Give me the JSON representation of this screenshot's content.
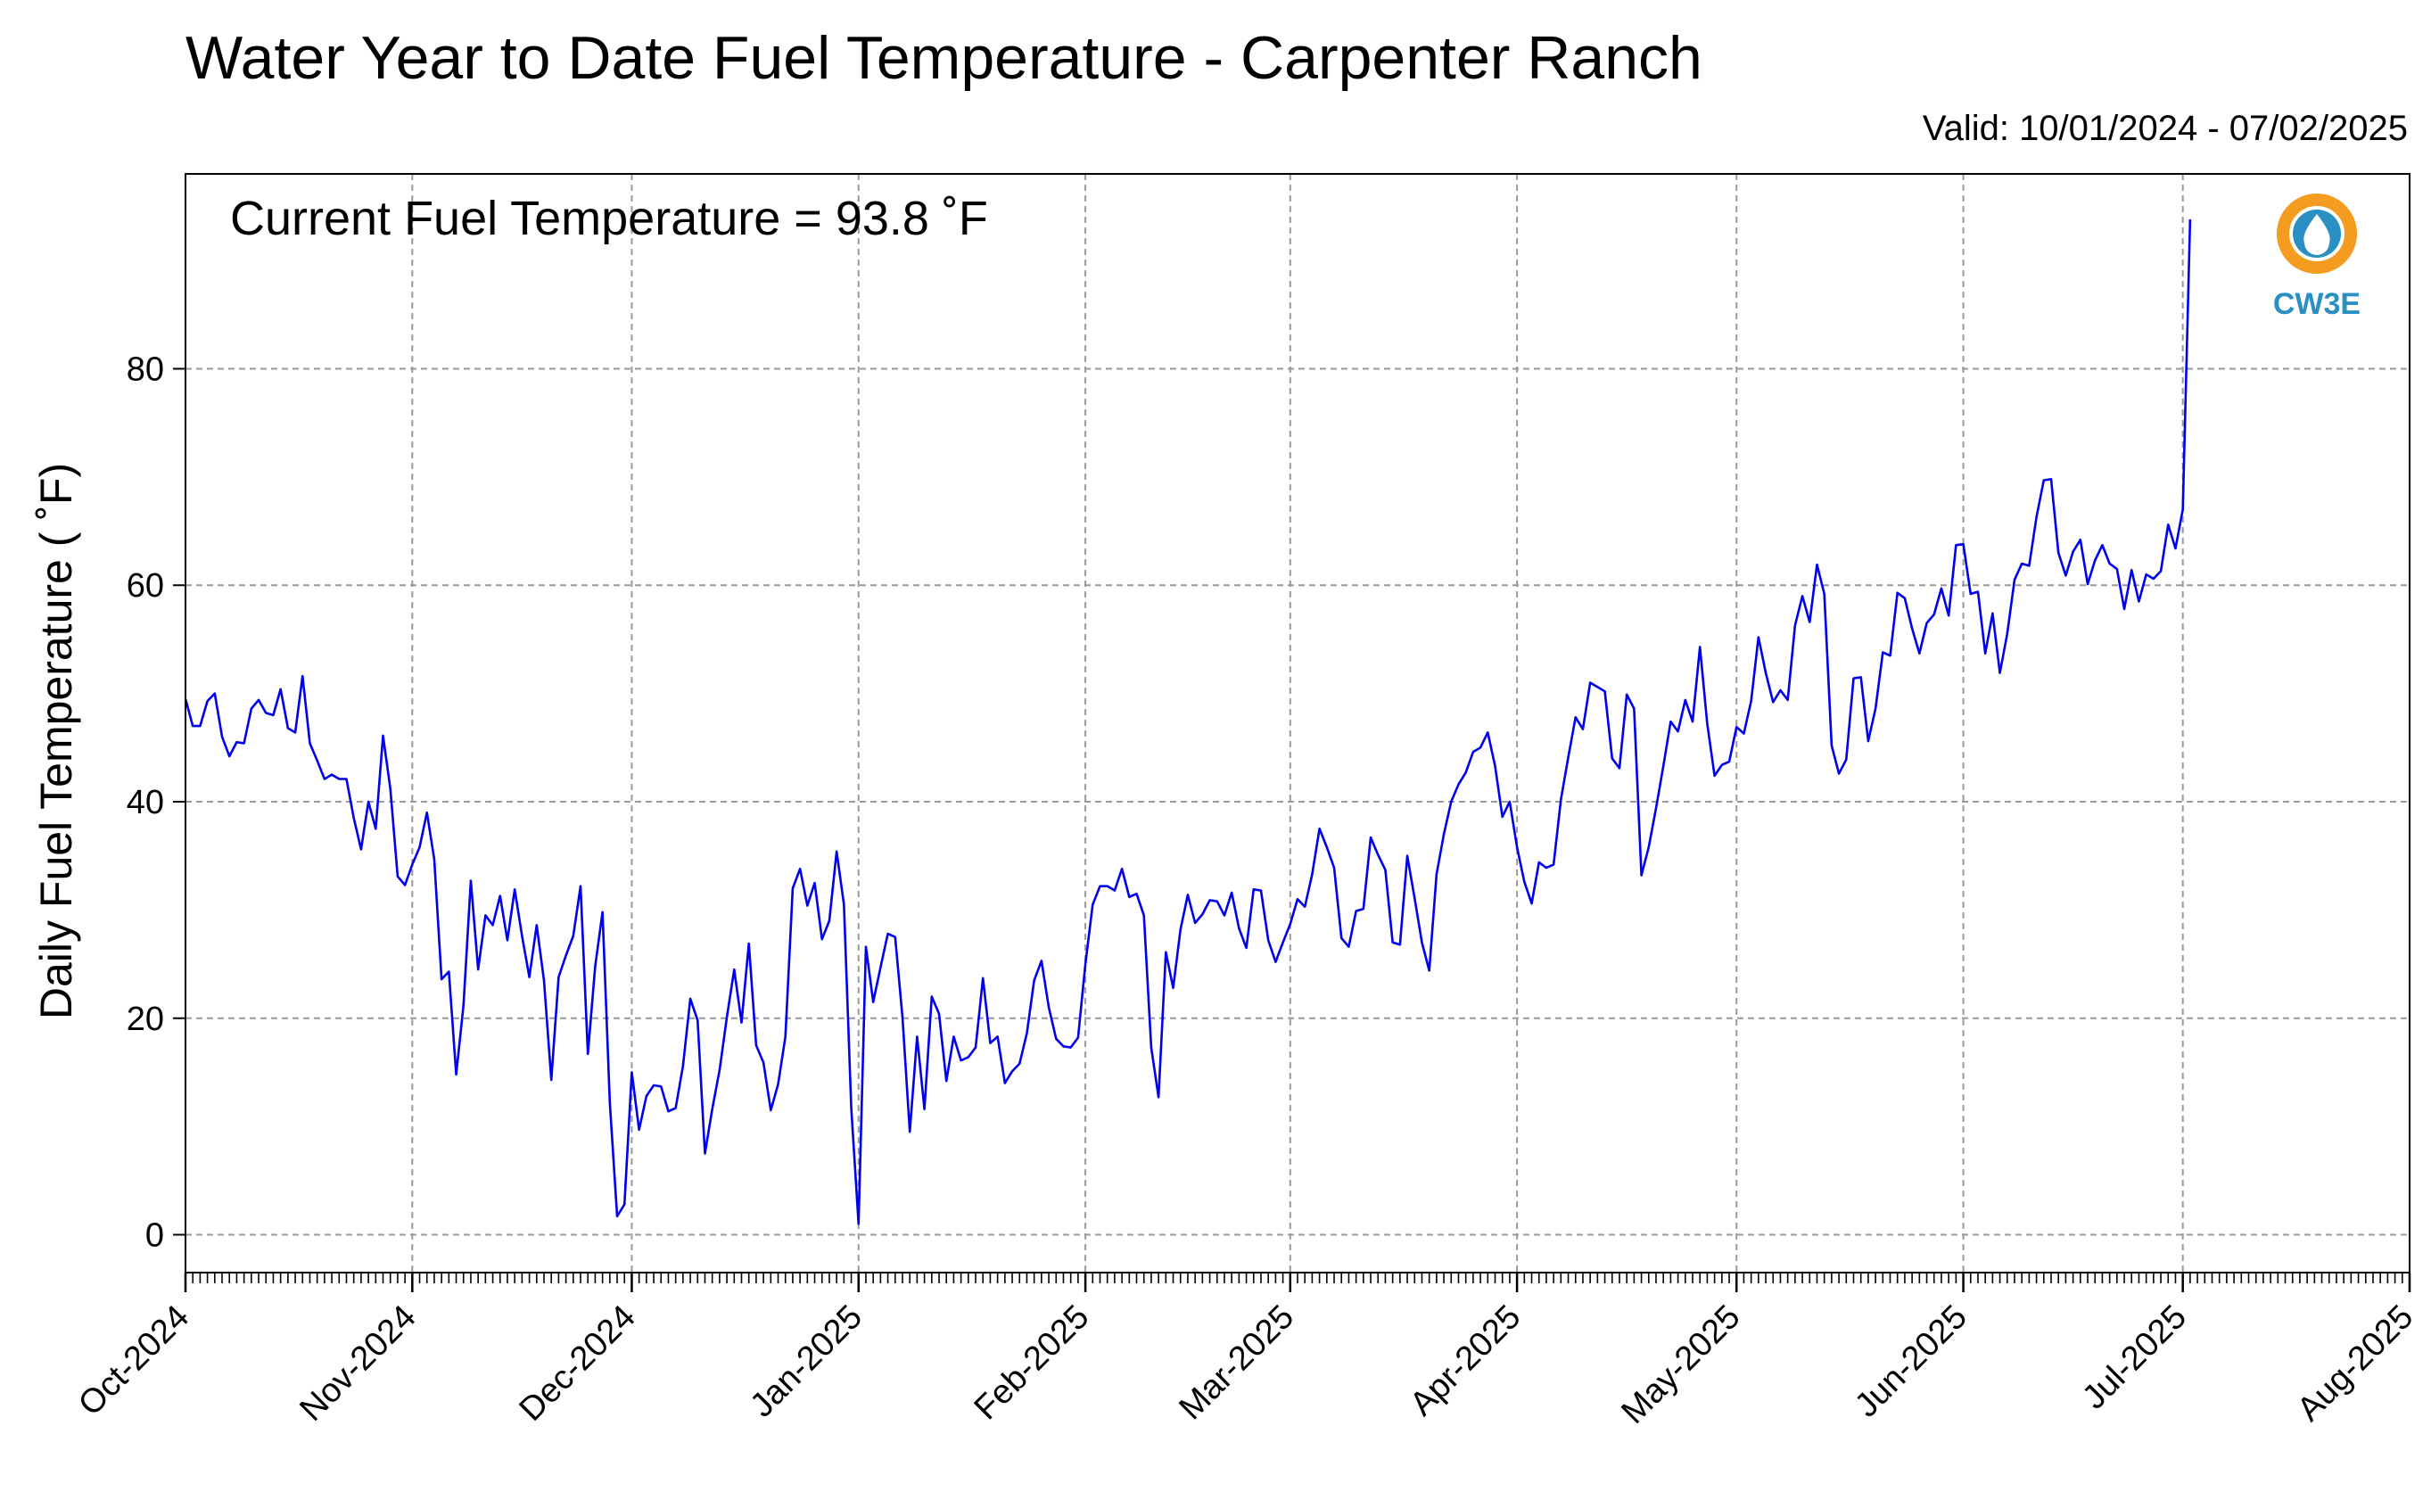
{
  "title": "Water Year to Date Fuel Temperature - Carpenter Ranch",
  "valid_label": "Valid: 10/01/2024 - 07/02/2025",
  "logo": {
    "text": "CW3E",
    "ring_color": "#f39c1f",
    "wave_color": "#2a8fc2",
    "text_color": "#2a8fc2"
  },
  "chart_data": {
    "type": "line",
    "ylabel": "Daily Fuel Temperature ( ˚F)",
    "annotation": "Current Fuel Temperature = 93.8  ˚F",
    "ylim": [
      -3.5,
      98
    ],
    "xlim": [
      "2024-10-01",
      "2025-08-01"
    ],
    "y_ticks": [
      0,
      20,
      40,
      60,
      80
    ],
    "x_ticks": [
      {
        "date": "2024-10-01",
        "label": "Oct-2024"
      },
      {
        "date": "2024-11-01",
        "label": "Nov-2024"
      },
      {
        "date": "2024-12-01",
        "label": "Dec-2024"
      },
      {
        "date": "2025-01-01",
        "label": "Jan-2025"
      },
      {
        "date": "2025-02-01",
        "label": "Feb-2025"
      },
      {
        "date": "2025-03-01",
        "label": "Mar-2025"
      },
      {
        "date": "2025-04-01",
        "label": "Apr-2025"
      },
      {
        "date": "2025-05-01",
        "label": "May-2025"
      },
      {
        "date": "2025-06-01",
        "label": "Jun-2025"
      },
      {
        "date": "2025-07-01",
        "label": "Jul-2025"
      },
      {
        "date": "2025-08-01",
        "label": "Aug-2025"
      }
    ],
    "grid": true,
    "line_color": "#0000ee",
    "series": [
      {
        "start_date": "2024-10-01",
        "values": [
          49.5,
          47.0,
          47.0,
          49.3,
          50.0,
          46.0,
          44.2,
          45.5,
          45.4,
          48.6,
          49.4,
          48.2,
          48.0,
          50.4,
          46.8,
          46.4,
          51.6,
          45.4,
          43.8,
          42.1,
          42.5,
          42.1,
          42.1,
          38.5,
          35.6,
          40.0,
          37.5,
          46.1,
          41.2,
          33.1,
          32.3,
          34.2,
          35.8,
          39.0,
          34.7,
          23.6,
          24.3,
          14.8,
          21.2,
          32.7,
          24.5,
          29.5,
          28.6,
          31.3,
          27.2,
          31.9,
          27.6,
          23.8,
          28.6,
          23.5,
          14.3,
          23.8,
          25.8,
          27.6,
          32.2,
          16.7,
          24.8,
          29.8,
          12.2,
          1.7,
          2.8,
          15.0,
          9.7,
          12.8,
          13.8,
          13.7,
          11.4,
          11.7,
          15.6,
          21.8,
          19.8,
          7.5,
          11.6,
          15.2,
          20.1,
          24.5,
          19.6,
          26.9,
          17.5,
          15.9,
          11.5,
          13.9,
          18.3,
          32.0,
          33.8,
          30.4,
          32.5,
          27.3,
          29.0,
          35.4,
          30.5,
          11.7,
          1.0,
          26.6,
          21.5,
          24.7,
          27.8,
          27.5,
          20.1,
          9.5,
          18.3,
          11.6,
          22.0,
          20.4,
          14.2,
          18.3,
          16.1,
          16.4,
          17.3,
          23.7,
          17.7,
          18.3,
          14.0,
          15.1,
          15.8,
          18.6,
          23.5,
          25.3,
          21.0,
          18.1,
          17.4,
          17.3,
          18.2,
          25.0,
          30.5,
          32.2,
          32.2,
          31.8,
          33.8,
          31.2,
          31.5,
          29.5,
          17.3,
          12.7,
          26.1,
          22.8,
          28.2,
          31.4,
          28.8,
          29.6,
          30.9,
          30.8,
          29.5,
          31.6,
          28.3,
          26.5,
          31.9,
          31.8,
          27.2,
          25.2,
          27.0,
          28.7,
          31.0,
          30.3,
          33.3,
          37.5,
          35.8,
          33.9,
          27.4,
          26.6,
          29.9,
          30.1,
          36.7,
          35.1,
          33.7,
          27.0,
          26.8,
          35.0,
          31.1,
          27.0,
          24.4,
          33.3,
          37.0,
          40.0,
          41.6,
          42.7,
          44.6,
          45.0,
          46.4,
          43.3,
          38.6,
          40.0,
          35.8,
          32.6,
          30.6,
          34.4,
          33.9,
          34.2,
          40.2,
          44.1,
          47.8,
          46.7,
          51.0,
          50.6,
          50.2,
          44.0,
          43.1,
          49.9,
          48.6,
          33.2,
          35.8,
          39.4,
          43.3,
          47.4,
          46.5,
          49.4,
          47.4,
          54.3,
          47.2,
          42.4,
          43.4,
          43.7,
          46.9,
          46.3,
          49.3,
          55.2,
          51.9,
          49.2,
          50.3,
          49.4,
          56.3,
          59.0,
          56.6,
          61.9,
          59.2,
          45.2,
          42.6,
          43.9,
          51.4,
          51.5,
          45.6,
          48.6,
          53.8,
          53.5,
          59.3,
          58.8,
          56.0,
          53.7,
          56.5,
          57.3,
          59.7,
          57.2,
          63.7,
          63.8,
          59.2,
          59.4,
          53.7,
          57.4,
          51.9,
          55.5,
          60.5,
          62.0,
          61.8,
          66.3,
          69.7,
          69.8,
          63.0,
          60.9,
          63.1,
          64.2,
          60.1,
          62.3,
          63.7,
          62.0,
          61.5,
          57.8,
          61.4,
          58.5,
          61.0,
          60.6,
          61.3,
          65.6,
          63.4,
          67.0,
          93.8
        ]
      }
    ]
  }
}
